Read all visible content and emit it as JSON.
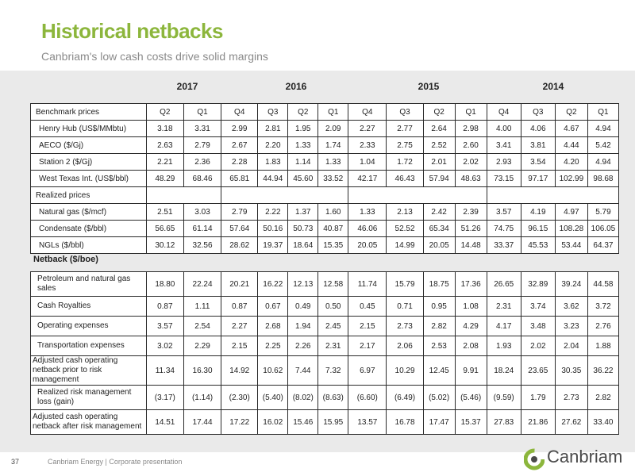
{
  "header": {
    "title": "Historical netbacks",
    "subtitle": "Canbriam's low cash costs drive solid margins"
  },
  "years": [
    "2017",
    "2016",
    "2015",
    "2014"
  ],
  "quarters": [
    "Q2",
    "Q1",
    "Q4",
    "Q3",
    "Q2",
    "Q1",
    "Q4",
    "Q3",
    "Q2",
    "Q1",
    "Q4",
    "Q3",
    "Q2",
    "Q1"
  ],
  "benchmark": {
    "header": "Benchmark prices",
    "rows": [
      {
        "label": "Henry Hub (US$/MMbtu)",
        "values": [
          "3.18",
          "3.31",
          "2.99",
          "2.81",
          "1.95",
          "2.09",
          "2.27",
          "2.77",
          "2.64",
          "2.98",
          "4.00",
          "4.06",
          "4.67",
          "4.94"
        ]
      },
      {
        "label": "AECO ($/Gj)",
        "values": [
          "2.63",
          "2.79",
          "2.67",
          "2.20",
          "1.33",
          "1.74",
          "2.33",
          "2.75",
          "2.52",
          "2.60",
          "3.41",
          "3.81",
          "4.44",
          "5.42"
        ]
      },
      {
        "label": "Station 2 ($/Gj)",
        "values": [
          "2.21",
          "2.36",
          "2.28",
          "1.83",
          "1.14",
          "1.33",
          "1.04",
          "1.72",
          "2.01",
          "2.02",
          "2.93",
          "3.54",
          "4.20",
          "4.94"
        ]
      },
      {
        "label": "West Texas Int. (US$/bbl)",
        "values": [
          "48.29",
          "68.46",
          "65.81",
          "44.94",
          "45.60",
          "33.52",
          "42.17",
          "46.43",
          "57.94",
          "48.63",
          "73.15",
          "97.17",
          "102.99",
          "98.68"
        ]
      }
    ]
  },
  "realized": {
    "header": "Realized prices",
    "rows": [
      {
        "label": "Natural gas ($/mcf)",
        "values": [
          "2.51",
          "3.03",
          "2.79",
          "2.22",
          "1.37",
          "1.60",
          "1.33",
          "2.13",
          "2.42",
          "2.39",
          "3.57",
          "4.19",
          "4.97",
          "5.79"
        ]
      },
      {
        "label": "Condensate ($/bbl)",
        "values": [
          "56.65",
          "61.14",
          "57.64",
          "50.16",
          "50.73",
          "40.87",
          "46.06",
          "52.52",
          "65.34",
          "51.26",
          "74.75",
          "96.15",
          "108.28",
          "106.05"
        ]
      },
      {
        "label": "NGLs ($/bbl)",
        "values": [
          "30.12",
          "32.56",
          "28.62",
          "19.37",
          "18.64",
          "15.35",
          "20.05",
          "14.99",
          "20.05",
          "14.48",
          "33.37",
          "45.53",
          "53.44",
          "64.37"
        ]
      }
    ]
  },
  "netback": {
    "header": "Netback ($/boe)",
    "rows": [
      {
        "label": "Petroleum and natural gas sales",
        "values": [
          "18.80",
          "22.24",
          "20.21",
          "16.22",
          "12.13",
          "12.58",
          "11.74",
          "15.79",
          "18.75",
          "17.36",
          "26.65",
          "32.89",
          "39.24",
          "44.58"
        ]
      },
      {
        "label": "Cash Royalties",
        "values": [
          "0.87",
          "1.11",
          "0.87",
          "0.67",
          "0.49",
          "0.50",
          "0.45",
          "0.71",
          "0.95",
          "1.08",
          "2.31",
          "3.74",
          "3.62",
          "3.72"
        ]
      },
      {
        "label": "Operating expenses",
        "values": [
          "3.57",
          "2.54",
          "2.27",
          "2.68",
          "1.94",
          "2.45",
          "2.15",
          "2.73",
          "2.82",
          "4.29",
          "4.17",
          "3.48",
          "3.23",
          "2.76"
        ]
      },
      {
        "label": "Transportation expenses",
        "values": [
          "3.02",
          "2.29",
          "2.15",
          "2.25",
          "2.26",
          "2.31",
          "2.17",
          "2.06",
          "2.53",
          "2.08",
          "1.93",
          "2.02",
          "2.04",
          "1.88"
        ]
      },
      {
        "label": "Adjusted cash operating netback prior to risk management",
        "values": [
          "11.34",
          "16.30",
          "14.92",
          "10.62",
          "7.44",
          "7.32",
          "6.97",
          "10.29",
          "12.45",
          "9.91",
          "18.24",
          "23.65",
          "30.35",
          "36.22"
        ]
      },
      {
        "label": "Realized risk management loss (gain)",
        "values": [
          "(3.17)",
          "(1.14)",
          "(2.30)",
          "(5.40)",
          "(8.02)",
          "(8.63)",
          "(6.60)",
          "(6.49)",
          "(5.02)",
          "(5.46)",
          "(9.59)",
          "1.79",
          "2.73",
          "2.82"
        ]
      },
      {
        "label": "Adjusted cash operating netback after risk management",
        "values": [
          "14.51",
          "17.44",
          "17.22",
          "16.02",
          "15.46",
          "15.95",
          "13.57",
          "16.78",
          "17.47",
          "15.37",
          "27.83",
          "21.86",
          "27.62",
          "33.40"
        ]
      }
    ]
  },
  "footer": {
    "page": "37",
    "company": "Canbriam Energy  |  Corporate presentation",
    "logo_text": "Canbriam"
  },
  "colors": {
    "accent": "#8cb63c",
    "band": "#eaeaea"
  }
}
